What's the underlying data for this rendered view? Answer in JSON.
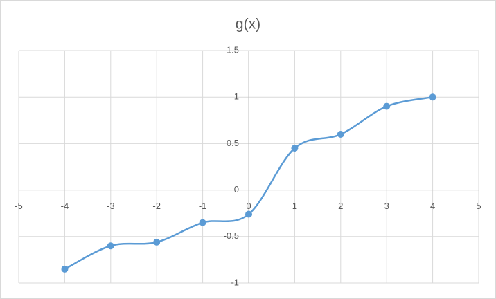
{
  "chart_data": {
    "type": "scatter",
    "title": "g(x)",
    "series": [
      {
        "name": "g(x)",
        "color": "#5b9bd5",
        "x": [
          -4,
          -3,
          -2,
          -1,
          0,
          1,
          2,
          3,
          4
        ],
        "values": [
          -0.85,
          -0.6,
          -0.56,
          -0.35,
          -0.26,
          0.45,
          0.6,
          0.9,
          1
        ]
      }
    ],
    "xlim": [
      -5,
      5
    ],
    "xticks": [
      -5,
      -4,
      -3,
      -2,
      -1,
      0,
      1,
      2,
      3,
      4,
      5
    ],
    "ylim": [
      -1,
      1.5
    ],
    "yticks": [
      -1,
      -0.5,
      0,
      0.5,
      1,
      1.5
    ],
    "grid": true,
    "smooth": true
  }
}
